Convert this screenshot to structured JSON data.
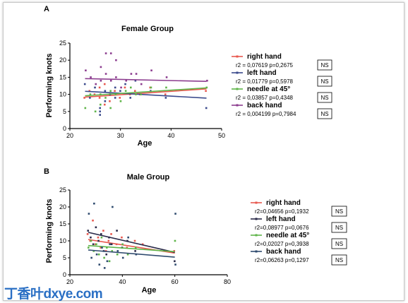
{
  "watermark": "丁香叶dxye.com",
  "chart_data": [
    {
      "type": "scatter",
      "panel": "A",
      "title": "Female Group",
      "xlabel": "Age",
      "ylabel": "Performing knots",
      "xlim": [
        20,
        50
      ],
      "ylim": [
        0,
        25
      ],
      "xticks": [
        "20",
        "30",
        "40",
        "50"
      ],
      "yticks": [
        "0",
        "5",
        "10",
        "15",
        "20",
        "25"
      ],
      "series": [
        {
          "name": "right hand",
          "color": "#e8584e",
          "stat": "r2 = 0,07619 p=0,2675",
          "ns": "NS",
          "regression": [
            [
              23,
              9.2
            ],
            [
              47,
              11.6
            ]
          ],
          "points": [
            [
              23,
              9
            ],
            [
              24,
              11
            ],
            [
              25,
              10
            ],
            [
              26,
              12
            ],
            [
              26,
              9
            ],
            [
              27,
              13
            ],
            [
              27,
              7
            ],
            [
              28,
              10
            ],
            [
              28,
              8
            ],
            [
              29,
              11
            ],
            [
              30,
              9
            ],
            [
              31,
              12
            ],
            [
              32,
              10
            ],
            [
              33,
              11
            ],
            [
              34,
              10
            ],
            [
              36,
              12
            ],
            [
              39,
              10
            ],
            [
              47,
              11
            ]
          ]
        },
        {
          "name": "left hand",
          "color": "#3b4a8c",
          "stat": "r2 = 0,01779 p=0,5978",
          "ns": "NS",
          "regression": [
            [
              23,
              10.9
            ],
            [
              47,
              8.9
            ]
          ],
          "points": [
            [
              23,
              13
            ],
            [
              24,
              9
            ],
            [
              25,
              12
            ],
            [
              26,
              6
            ],
            [
              26,
              5
            ],
            [
              26,
              4
            ],
            [
              27,
              11
            ],
            [
              27,
              8
            ],
            [
              28,
              10
            ],
            [
              29,
              12
            ],
            [
              29,
              9
            ],
            [
              30,
              11
            ],
            [
              31,
              13
            ],
            [
              32,
              9
            ],
            [
              33,
              14
            ],
            [
              34,
              10
            ],
            [
              36,
              11
            ],
            [
              39,
              9
            ],
            [
              47,
              6
            ]
          ]
        },
        {
          "name": "needle at 45°",
          "color": "#5fb54a",
          "stat": "r2 = 0,03857 p=0,4348",
          "ns": "NS",
          "regression": [
            [
              23,
              9.6
            ],
            [
              47,
              11.9
            ]
          ],
          "points": [
            [
              23,
              6
            ],
            [
              24,
              10
            ],
            [
              25,
              5
            ],
            [
              26,
              10
            ],
            [
              26,
              7
            ],
            [
              27,
              9
            ],
            [
              28,
              11
            ],
            [
              28,
              6
            ],
            [
              29,
              10
            ],
            [
              30,
              8
            ],
            [
              31,
              11
            ],
            [
              32,
              12
            ],
            [
              33,
              10
            ],
            [
              34,
              10
            ],
            [
              36,
              12
            ],
            [
              39,
              12
            ],
            [
              47,
              12
            ]
          ]
        },
        {
          "name": "back hand",
          "color": "#8c3d8f",
          "stat": "r2 = 0,004199 p=0,7984",
          "ns": "NS",
          "regression": [
            [
              23,
              14.6
            ],
            [
              47,
              13.8
            ]
          ],
          "points": [
            [
              23,
              17
            ],
            [
              24,
              15
            ],
            [
              25,
              13
            ],
            [
              26,
              18
            ],
            [
              26,
              14
            ],
            [
              27,
              22
            ],
            [
              27,
              16
            ],
            [
              28,
              22
            ],
            [
              28,
              14
            ],
            [
              29,
              20
            ],
            [
              29,
              15
            ],
            [
              30,
              12
            ],
            [
              31,
              14
            ],
            [
              32,
              16
            ],
            [
              33,
              16
            ],
            [
              34,
              13
            ],
            [
              36,
              17
            ],
            [
              39,
              15
            ],
            [
              47,
              14
            ]
          ]
        }
      ]
    },
    {
      "type": "scatter",
      "panel": "B",
      "title": "Male Group",
      "xlabel": "Age",
      "ylabel": "Performing knots",
      "xlim": [
        20,
        80
      ],
      "ylim": [
        0,
        25
      ],
      "xticks": [
        "20",
        "40",
        "60",
        "80"
      ],
      "yticks": [
        "0",
        "5",
        "10",
        "15",
        "20",
        "25"
      ],
      "series": [
        {
          "name": "right hand",
          "color": "#e8584e",
          "stat": "r2=0,04656 p=0,1932",
          "ns": "NS",
          "regression": [
            [
              27,
              10.4
            ],
            [
              60,
              6.4
            ]
          ],
          "points": [
            [
              27,
              12
            ],
            [
              28,
              10
            ],
            [
              29,
              16
            ],
            [
              30,
              9
            ],
            [
              31,
              11
            ],
            [
              32,
              8
            ],
            [
              33,
              13
            ],
            [
              34,
              7
            ],
            [
              35,
              10
            ],
            [
              36,
              12
            ],
            [
              38,
              9
            ],
            [
              40,
              11
            ],
            [
              42,
              8
            ],
            [
              45,
              10
            ],
            [
              48,
              9
            ],
            [
              60,
              7
            ]
          ]
        },
        {
          "name": "left hand",
          "color": "#2b2b4a",
          "stat": "r2=0,08977 p=0,0676",
          "ns": "NS",
          "regression": [
            [
              27,
              12.5
            ],
            [
              60,
              6.6
            ]
          ],
          "points": [
            [
              27,
              13
            ],
            [
              28,
              11
            ],
            [
              29,
              9
            ],
            [
              30,
              14
            ],
            [
              31,
              10
            ],
            [
              32,
              12
            ],
            [
              33,
              7
            ],
            [
              34,
              6
            ],
            [
              35,
              11
            ],
            [
              36,
              9
            ],
            [
              38,
              13
            ],
            [
              40,
              8
            ],
            [
              42,
              10
            ],
            [
              45,
              7
            ],
            [
              60,
              4
            ]
          ]
        },
        {
          "name": "needle at 45°",
          "color": "#5fb54a",
          "stat": "r2=0,02027 p=0,3938",
          "ns": "NS",
          "regression": [
            [
              27,
              8.6
            ],
            [
              60,
              6.8
            ]
          ],
          "points": [
            [
              27,
              8
            ],
            [
              28,
              10
            ],
            [
              29,
              7
            ],
            [
              30,
              9
            ],
            [
              31,
              6
            ],
            [
              32,
              11
            ],
            [
              33,
              5
            ],
            [
              34,
              8
            ],
            [
              35,
              4
            ],
            [
              36,
              7
            ],
            [
              38,
              6
            ],
            [
              40,
              9
            ],
            [
              42,
              6
            ],
            [
              45,
              8
            ],
            [
              60,
              10
            ]
          ]
        },
        {
          "name": "back hand",
          "color": "#2e4a6e",
          "stat": "r2=0,06263 p=0,1297",
          "ns": "NS",
          "regression": [
            [
              27,
              7.3
            ],
            [
              60,
              5.2
            ]
          ],
          "points": [
            [
              27,
              18
            ],
            [
              28,
              5
            ],
            [
              29,
              21
            ],
            [
              30,
              6
            ],
            [
              31,
              3
            ],
            [
              32,
              8
            ],
            [
              33,
              2
            ],
            [
              34,
              4
            ],
            [
              35,
              9
            ],
            [
              36,
              20
            ],
            [
              38,
              7
            ],
            [
              40,
              5
            ],
            [
              42,
              11
            ],
            [
              45,
              6
            ],
            [
              60,
              3
            ],
            [
              60,
              18
            ]
          ]
        }
      ]
    }
  ]
}
